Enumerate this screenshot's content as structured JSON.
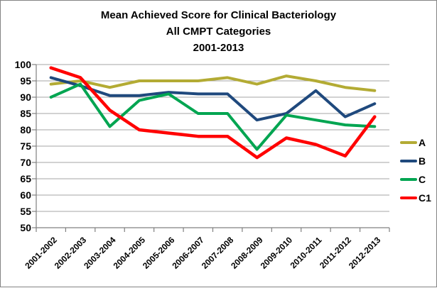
{
  "chart_data": {
    "type": "line",
    "title_lines": [
      "Mean Achieved Score for Clinical Bacteriology",
      "All CMPT Categories",
      "2001-2013"
    ],
    "categories": [
      "2001-2002",
      "2002-2003",
      "2003-2004",
      "2004-2005",
      "2005-2006",
      "2006-2007",
      "2007-2008",
      "2008-2009",
      "2009-2010",
      "2010-2011",
      "2011-2012",
      "2012-2013"
    ],
    "series": [
      {
        "name": "A",
        "color": "#b3ab34",
        "values": [
          94,
          95,
          93,
          95,
          95,
          95,
          96,
          94,
          96.5,
          95,
          93,
          92
        ]
      },
      {
        "name": "B",
        "color": "#1f497d",
        "values": [
          96,
          93.5,
          90.5,
          90.5,
          91.5,
          91,
          91,
          83,
          85,
          92,
          84,
          88
        ]
      },
      {
        "name": "C",
        "color": "#00a551",
        "values": [
          90,
          94,
          81,
          89,
          91,
          85,
          85,
          74,
          84.5,
          83,
          81.5,
          81
        ]
      },
      {
        "name": "C1",
        "color": "#ff0000",
        "values": [
          99,
          96,
          86,
          80,
          79,
          78,
          78,
          71.5,
          77.5,
          75.5,
          72,
          84
        ]
      }
    ],
    "xlabel": "",
    "ylabel": "",
    "ylim": [
      50,
      100
    ],
    "ytick_step": 5,
    "ytick_labels": [
      "100",
      "95",
      "90",
      "85",
      "80",
      "75",
      "70",
      "65",
      "60",
      "55",
      "50"
    ],
    "grid": true,
    "legend_position": "right",
    "styles": {
      "grid_color": "#a6a6a6",
      "axis_color": "#808080",
      "text_color": "#000000",
      "line_width": 4
    }
  }
}
